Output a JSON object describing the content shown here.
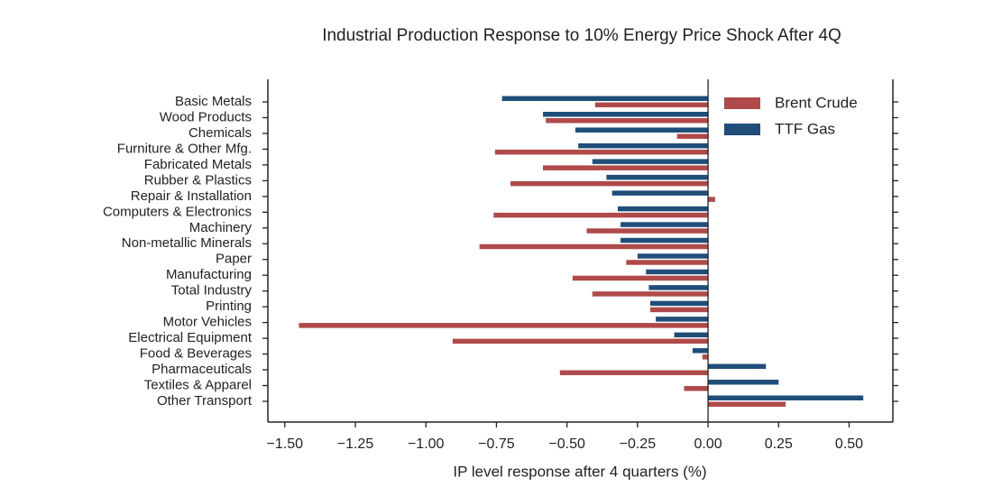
{
  "chart_data": {
    "type": "barh",
    "title": "Industrial Production Response to 10% Energy Price Shock After 4Q",
    "x_label": "IP level response after 4 quarters (%)",
    "categories": [
      "Basic Metals",
      "Wood Products",
      "Chemicals",
      "Furniture & Other Mfg.",
      "Fabricated Metals",
      "Rubber & Plastics",
      "Repair & Installation",
      "Computers & Electronics",
      "Machinery",
      "Non-metallic Minerals",
      "Paper",
      "Manufacturing",
      "Total Industry",
      "Printing",
      "Motor Vehicles",
      "Electrical Equipment",
      "Food & Beverages",
      "Pharmaceuticals",
      "Textiles & Apparel",
      "Other Transport"
    ],
    "series": [
      {
        "name": "Brent Crude",
        "color": "#b04a4a",
        "values": [
          -0.4,
          -0.575,
          -0.11,
          -0.755,
          -0.585,
          -0.7,
          0.025,
          -0.76,
          -0.43,
          -0.81,
          -0.29,
          -0.48,
          -0.41,
          -0.205,
          -1.45,
          -0.905,
          -0.02,
          -0.525,
          -0.085,
          0.275
        ]
      },
      {
        "name": "TTF Gas",
        "color": "#1f4e79",
        "values": [
          -0.73,
          -0.585,
          -0.47,
          -0.46,
          -0.41,
          -0.36,
          -0.34,
          -0.32,
          -0.31,
          -0.31,
          -0.25,
          -0.22,
          -0.21,
          -0.205,
          -0.185,
          -0.12,
          -0.055,
          0.205,
          0.25,
          0.55
        ]
      }
    ],
    "xlim": [
      -1.56,
      0.655
    ],
    "xticks": [
      {
        "value": -1.5,
        "label": "−1.50"
      },
      {
        "value": -1.25,
        "label": "−1.25"
      },
      {
        "value": -1.0,
        "label": "−1.00"
      },
      {
        "value": -0.75,
        "label": "−0.75"
      },
      {
        "value": -0.5,
        "label": "−0.50"
      },
      {
        "value": -0.25,
        "label": "−0.25"
      },
      {
        "value": 0,
        "label": "0.00"
      },
      0.25,
      {
        "value": 0.5,
        "label": "0.50"
      }
    ],
    "legend": "upper right",
    "grid": false
  }
}
